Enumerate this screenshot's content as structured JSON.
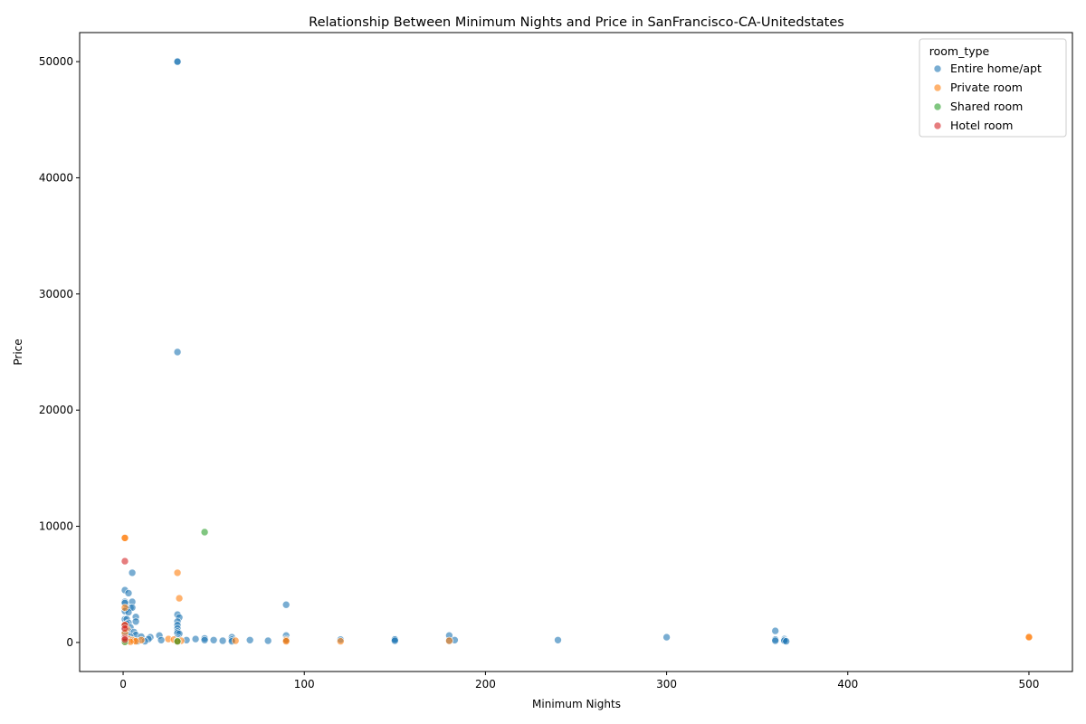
{
  "chart_data": {
    "type": "scatter",
    "title": "Relationship Between Minimum Nights and Price in SanFrancisco-CA-Unitedstates",
    "xlabel": "Minimum Nights",
    "ylabel": "Price",
    "xlim": [
      -24,
      524
    ],
    "ylim": [
      -2500,
      52500
    ],
    "xticks": [
      0,
      100,
      200,
      300,
      400,
      500
    ],
    "yticks": [
      0,
      10000,
      20000,
      30000,
      40000,
      50000
    ],
    "grid": false,
    "legend": {
      "title": "room_type",
      "placement": "top-right"
    },
    "series": [
      {
        "name": "Entire home/apt",
        "color": "#1f77b4",
        "points": [
          [
            30,
            50000
          ],
          [
            30,
            50000
          ],
          [
            30,
            25000
          ],
          [
            5,
            6000
          ],
          [
            1,
            4500
          ],
          [
            3,
            4250
          ],
          [
            1,
            3500
          ],
          [
            5,
            3500
          ],
          [
            1,
            3400
          ],
          [
            90,
            3250
          ],
          [
            4,
            3000
          ],
          [
            5,
            3000
          ],
          [
            2,
            2900
          ],
          [
            1,
            2700
          ],
          [
            3,
            2600
          ],
          [
            30,
            2400
          ],
          [
            7,
            2200
          ],
          [
            31,
            2150
          ],
          [
            1,
            2000
          ],
          [
            2,
            2000
          ],
          [
            7,
            1800
          ],
          [
            30,
            1800
          ],
          [
            3,
            1700
          ],
          [
            2,
            1600
          ],
          [
            30,
            1500
          ],
          [
            1,
            1400
          ],
          [
            4,
            1300
          ],
          [
            30,
            1200
          ],
          [
            1,
            1100
          ],
          [
            3,
            1000
          ],
          [
            360,
            1000
          ],
          [
            30,
            950
          ],
          [
            6,
            900
          ],
          [
            1,
            850
          ],
          [
            30,
            800
          ],
          [
            31,
            750
          ],
          [
            2,
            700
          ],
          [
            7,
            650
          ],
          [
            20,
            600
          ],
          [
            90,
            600
          ],
          [
            180,
            600
          ],
          [
            1,
            550
          ],
          [
            4,
            500
          ],
          [
            10,
            500
          ],
          [
            15,
            450
          ],
          [
            300,
            450
          ],
          [
            60,
            450
          ],
          [
            30,
            400
          ],
          [
            45,
            350
          ],
          [
            1,
            350
          ],
          [
            2,
            300
          ],
          [
            14,
            300
          ],
          [
            40,
            300
          ],
          [
            90,
            300
          ],
          [
            150,
            300
          ],
          [
            365,
            300
          ],
          [
            1,
            250
          ],
          [
            30,
            250
          ],
          [
            60,
            250
          ],
          [
            120,
            250
          ],
          [
            150,
            250
          ],
          [
            360,
            250
          ],
          [
            5,
            200
          ],
          [
            21,
            200
          ],
          [
            35,
            200
          ],
          [
            45,
            200
          ],
          [
            50,
            200
          ],
          [
            70,
            200
          ],
          [
            183,
            200
          ],
          [
            240,
            200
          ],
          [
            365,
            200
          ],
          [
            1,
            150
          ],
          [
            3,
            150
          ],
          [
            30,
            150
          ],
          [
            55,
            150
          ],
          [
            80,
            150
          ],
          [
            90,
            150
          ],
          [
            150,
            150
          ],
          [
            180,
            150
          ],
          [
            360,
            150
          ],
          [
            365,
            150
          ],
          [
            1,
            100
          ],
          [
            2,
            100
          ],
          [
            8,
            100
          ],
          [
            12,
            100
          ],
          [
            30,
            100
          ],
          [
            60,
            100
          ],
          [
            366,
            100
          ],
          [
            1,
            80
          ],
          [
            2,
            60
          ],
          [
            30,
            60
          ],
          [
            1,
            50
          ]
        ]
      },
      {
        "name": "Private room",
        "color": "#ff7f0e",
        "points": [
          [
            1,
            9000
          ],
          [
            1,
            9000
          ],
          [
            30,
            6000
          ],
          [
            31,
            3800
          ],
          [
            1,
            3000
          ],
          [
            1,
            1500
          ],
          [
            2,
            1200
          ],
          [
            1,
            800
          ],
          [
            500,
            500
          ],
          [
            500,
            450
          ],
          [
            3,
            300
          ],
          [
            25,
            300
          ],
          [
            28,
            250
          ],
          [
            5,
            200
          ],
          [
            10,
            200
          ],
          [
            90,
            200
          ],
          [
            1,
            150
          ],
          [
            6,
            150
          ],
          [
            30,
            150
          ],
          [
            32,
            150
          ],
          [
            62,
            150
          ],
          [
            180,
            150
          ],
          [
            2,
            100
          ],
          [
            7,
            100
          ],
          [
            120,
            100
          ],
          [
            90,
            100
          ],
          [
            1,
            80
          ],
          [
            4,
            60
          ],
          [
            30,
            60
          ],
          [
            1,
            40
          ]
        ]
      },
      {
        "name": "Shared room",
        "color": "#2ca02c",
        "points": [
          [
            45,
            9500
          ],
          [
            1,
            150
          ],
          [
            30,
            100
          ],
          [
            1,
            60
          ]
        ]
      },
      {
        "name": "Hotel room",
        "color": "#d62728",
        "points": [
          [
            1,
            7000
          ],
          [
            1,
            1500
          ],
          [
            1,
            1200
          ],
          [
            1,
            400
          ],
          [
            1,
            250
          ]
        ]
      }
    ]
  }
}
